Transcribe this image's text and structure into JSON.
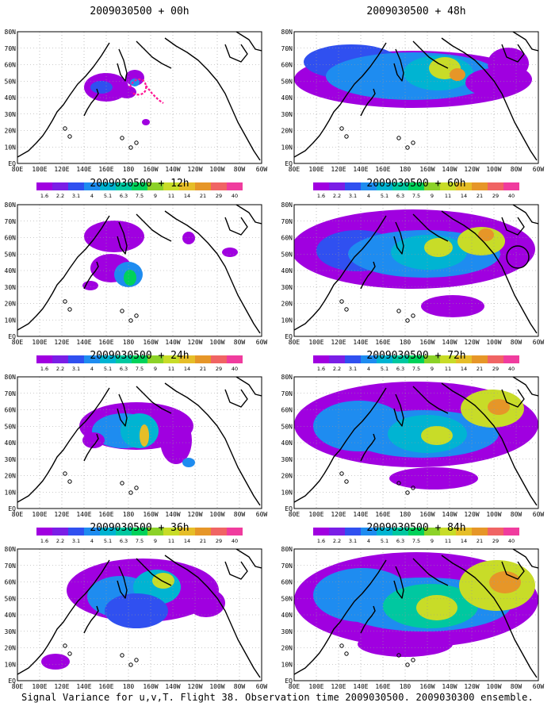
{
  "caption": "Signal Variance for u,v,T. Flight 38. Observation time 2009030500. 2009030300 ensemble.",
  "colorbar": {
    "labels": [
      "1.6",
      "2.2",
      "3.1",
      "4",
      "5.1",
      "6.3",
      "7.5",
      "9",
      "11",
      "14",
      "21",
      "29",
      "40"
    ],
    "colors": [
      "#a000e0",
      "#7a1ee6",
      "#3050f0",
      "#1e8cf0",
      "#00b4d2",
      "#00c8a0",
      "#00d25a",
      "#8cd228",
      "#c8dc28",
      "#e6be28",
      "#e69628",
      "#f06464",
      "#f03c9e"
    ]
  },
  "axes": {
    "lon_labels": [
      "80E",
      "100E",
      "120E",
      "140E",
      "160E",
      "180",
      "160W",
      "140W",
      "120W",
      "100W",
      "80W",
      "60W"
    ],
    "lat_labels": [
      "EQ",
      "10N",
      "20N",
      "30N",
      "40N",
      "50N",
      "60N",
      "70N",
      "80N"
    ]
  },
  "panels": [
    {
      "title": "2009030500 + 00h",
      "lead": 0
    },
    {
      "title": "2009030500 + 48h",
      "lead": 48
    },
    {
      "title": "2009030500 + 12h",
      "lead": 12
    },
    {
      "title": "2009030500 + 60h",
      "lead": 60
    },
    {
      "title": "2009030500 + 24h",
      "lead": 24
    },
    {
      "title": "2009030500 + 72h",
      "lead": 72
    },
    {
      "title": "2009030500 + 36h",
      "lead": 36
    },
    {
      "title": "2009030500 + 84h",
      "lead": 84
    }
  ]
}
